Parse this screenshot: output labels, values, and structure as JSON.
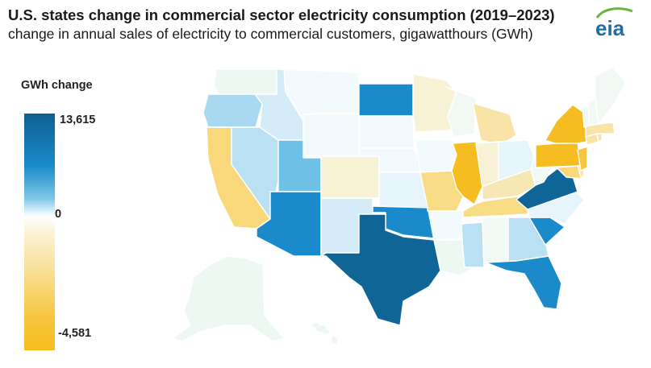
{
  "header": {
    "title": "U.S. states change in commercial sector electricity consumption (2019–2023)",
    "subtitle": "change in annual sales of electricity to commercial customers, gigawatthours (GWh)",
    "logo_text": "eia"
  },
  "legend": {
    "title": "GWh change",
    "max_label": "13,615",
    "mid_label": "0",
    "min_label": "-4,581",
    "colors": [
      "#f5bd1f",
      "#f8dc86",
      "#fbf3d8",
      "#ffffff",
      "#e6f7fc",
      "#7fc7e8",
      "#1a8acb",
      "#0f5f8f"
    ]
  },
  "colors": {
    "strong_positive": "#0f6596",
    "positive": "#1a8acb",
    "mid_positive": "#6ec0e6",
    "light_positive": "#b9e1f3",
    "near_zero": "#eef8f2",
    "slightly_negative": "#f9efcd",
    "negative": "#f8d87a",
    "strong_negative": "#f5bd1f",
    "logo_blue": "#1f6ea5",
    "logo_green": "#6ab43e"
  },
  "map": {
    "states": [
      {
        "name": "WA",
        "color": "#eef8f2"
      },
      {
        "name": "OR",
        "color": "#a9d9f0"
      },
      {
        "name": "CA",
        "color": "#f8d87a"
      },
      {
        "name": "NV",
        "color": "#b9e1f3"
      },
      {
        "name": "ID",
        "color": "#d3ecf7"
      },
      {
        "name": "MT",
        "color": "#f2fafd"
      },
      {
        "name": "WY",
        "color": "#f2fafd"
      },
      {
        "name": "UT",
        "color": "#6ec0e6"
      },
      {
        "name": "AZ",
        "color": "#1a8acb"
      },
      {
        "name": "CO",
        "color": "#f7f2d6"
      },
      {
        "name": "NM",
        "color": "#d3ecf7"
      },
      {
        "name": "ND",
        "color": "#1a8acb"
      },
      {
        "name": "SD",
        "color": "#f2fafd"
      },
      {
        "name": "NE",
        "color": "#f2fafd"
      },
      {
        "name": "KS",
        "color": "#e6f5fb"
      },
      {
        "name": "OK",
        "color": "#1a8acb"
      },
      {
        "name": "TX",
        "color": "#0f6596"
      },
      {
        "name": "MN",
        "color": "#f7f2d6"
      },
      {
        "name": "IA",
        "color": "#f2fafd"
      },
      {
        "name": "MO",
        "color": "#f8dc86"
      },
      {
        "name": "AR",
        "color": "#f2fafd"
      },
      {
        "name": "LA",
        "color": "#eef8f2"
      },
      {
        "name": "WI",
        "color": "#f2f9f4"
      },
      {
        "name": "IL",
        "color": "#f5bd1f"
      },
      {
        "name": "MS",
        "color": "#b9e1f3"
      },
      {
        "name": "MI",
        "color": "#f9e3a6"
      },
      {
        "name": "IN",
        "color": "#f7f2d6"
      },
      {
        "name": "KY",
        "color": "#f7e7b4"
      },
      {
        "name": "TN",
        "color": "#f8dc86"
      },
      {
        "name": "AL",
        "color": "#f2f9f4"
      },
      {
        "name": "OH",
        "color": "#e6f5fb"
      },
      {
        "name": "GA",
        "color": "#b9e1f3"
      },
      {
        "name": "FL",
        "color": "#1a8acb"
      },
      {
        "name": "SC",
        "color": "#1a8acb"
      },
      {
        "name": "NC",
        "color": "#e6f5fb"
      },
      {
        "name": "VA",
        "color": "#0f6596"
      },
      {
        "name": "WV",
        "color": "#f2f9f4"
      },
      {
        "name": "PA",
        "color": "#f5bd1f"
      },
      {
        "name": "NY",
        "color": "#f5bd1f"
      },
      {
        "name": "MD",
        "color": "#f8d87a"
      },
      {
        "name": "DE",
        "color": "#f9e3a6"
      },
      {
        "name": "NJ",
        "color": "#f7c53f"
      },
      {
        "name": "CT",
        "color": "#f9e3a6"
      },
      {
        "name": "RI",
        "color": "#f9e3a6"
      },
      {
        "name": "MA",
        "color": "#f9e3a6"
      },
      {
        "name": "VT",
        "color": "#f2f9f4"
      },
      {
        "name": "NH",
        "color": "#f2f9f4"
      },
      {
        "name": "ME",
        "color": "#f2f9f4"
      },
      {
        "name": "AK",
        "color": "#eef8f2"
      },
      {
        "name": "HI",
        "color": "#eef8f2"
      }
    ]
  }
}
